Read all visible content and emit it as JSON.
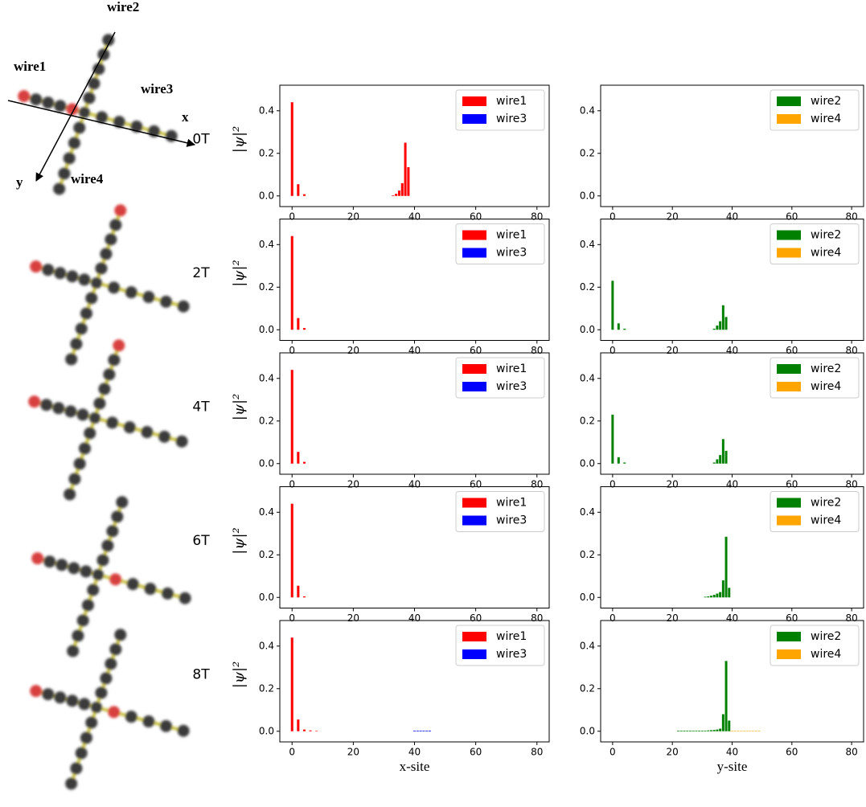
{
  "illustration": {
    "labels": [
      "wire2",
      "wire1",
      "wire3",
      "x",
      "y",
      "wire4"
    ]
  },
  "chart_data": [
    {
      "type": "bar",
      "label": "0T",
      "ylabel": "|ψ|²",
      "legend": "upper right",
      "xlim": [
        -4,
        84
      ],
      "ylim": [
        -0.05,
        0.52
      ],
      "xticks": [
        0,
        20,
        40,
        60,
        80
      ],
      "yticks": [
        {
          "value": 0,
          "label": "0.0"
        },
        {
          "value": 0.2,
          "label": "0.2"
        },
        {
          "value": 0.4,
          "label": "0.4"
        }
      ],
      "series": [
        {
          "name": "wire1",
          "color": "#ff0000",
          "x": [
            0,
            2,
            4,
            33,
            34,
            35,
            36,
            37,
            38
          ],
          "values": [
            0.44,
            0.055,
            0.008,
            0.003,
            0.01,
            0.025,
            0.06,
            0.25,
            0.135
          ]
        },
        {
          "name": "wire3",
          "color": "#0000ff",
          "x": [],
          "values": []
        }
      ]
    },
    {
      "type": "bar",
      "legend": "upper right",
      "xlim": [
        -4,
        84
      ],
      "ylim": [
        -0.05,
        0.52
      ],
      "xticks": [
        0,
        20,
        40,
        60,
        80
      ],
      "yticks": [
        {
          "value": 0,
          "label": "0.0"
        },
        {
          "value": 0.2,
          "label": "0.2"
        },
        {
          "value": 0.4,
          "label": "0.4"
        }
      ],
      "series": [
        {
          "name": "wire2",
          "color": "#008000",
          "x": [],
          "values": []
        },
        {
          "name": "wire4",
          "color": "#ffa500",
          "x": [],
          "values": []
        }
      ]
    },
    {
      "type": "bar",
      "label": "2T",
      "ylabel": "|ψ|²",
      "legend": "upper right",
      "xlim": [
        -4,
        84
      ],
      "ylim": [
        -0.05,
        0.52
      ],
      "xticks": [
        0,
        20,
        40,
        60,
        80
      ],
      "yticks": [
        {
          "value": 0,
          "label": "0.0"
        },
        {
          "value": 0.2,
          "label": "0.2"
        },
        {
          "value": 0.4,
          "label": "0.4"
        }
      ],
      "series": [
        {
          "name": "wire1",
          "color": "#ff0000",
          "x": [
            0,
            2,
            4
          ],
          "values": [
            0.44,
            0.055,
            0.008
          ]
        },
        {
          "name": "wire3",
          "color": "#0000ff",
          "x": [],
          "values": []
        }
      ]
    },
    {
      "type": "bar",
      "legend": "upper right",
      "xlim": [
        -4,
        84
      ],
      "ylim": [
        -0.05,
        0.52
      ],
      "xticks": [
        0,
        20,
        40,
        60,
        80
      ],
      "yticks": [
        {
          "value": 0,
          "label": "0.0"
        },
        {
          "value": 0.2,
          "label": "0.2"
        },
        {
          "value": 0.4,
          "label": "0.4"
        }
      ],
      "series": [
        {
          "name": "wire2",
          "color": "#008000",
          "x": [
            0,
            2,
            4,
            34,
            35,
            36,
            37,
            38
          ],
          "values": [
            0.23,
            0.03,
            0.005,
            0.005,
            0.02,
            0.04,
            0.115,
            0.06
          ]
        },
        {
          "name": "wire4",
          "color": "#ffa500",
          "x": [],
          "values": []
        }
      ]
    },
    {
      "type": "bar",
      "label": "4T",
      "ylabel": "|ψ|²",
      "legend": "upper right",
      "xlim": [
        -4,
        84
      ],
      "ylim": [
        -0.05,
        0.52
      ],
      "xticks": [
        0,
        20,
        40,
        60,
        80
      ],
      "yticks": [
        {
          "value": 0,
          "label": "0.0"
        },
        {
          "value": 0.2,
          "label": "0.2"
        },
        {
          "value": 0.4,
          "label": "0.4"
        }
      ],
      "series": [
        {
          "name": "wire1",
          "color": "#ff0000",
          "x": [
            0,
            2,
            4
          ],
          "values": [
            0.44,
            0.055,
            0.008
          ]
        },
        {
          "name": "wire3",
          "color": "#0000ff",
          "x": [],
          "values": []
        }
      ]
    },
    {
      "type": "bar",
      "legend": "upper right",
      "xlim": [
        -4,
        84
      ],
      "ylim": [
        -0.05,
        0.52
      ],
      "xticks": [
        0,
        20,
        40,
        60,
        80
      ],
      "yticks": [
        {
          "value": 0,
          "label": "0.0"
        },
        {
          "value": 0.2,
          "label": "0.2"
        },
        {
          "value": 0.4,
          "label": "0.4"
        }
      ],
      "series": [
        {
          "name": "wire2",
          "color": "#008000",
          "x": [
            0,
            2,
            4,
            34,
            35,
            36,
            37,
            38
          ],
          "values": [
            0.23,
            0.03,
            0.005,
            0.005,
            0.02,
            0.04,
            0.115,
            0.06
          ]
        },
        {
          "name": "wire4",
          "color": "#ffa500",
          "x": [],
          "values": []
        }
      ]
    },
    {
      "type": "bar",
      "label": "6T",
      "ylabel": "|ψ|²",
      "legend": "upper right",
      "xlim": [
        -4,
        84
      ],
      "ylim": [
        -0.05,
        0.52
      ],
      "xticks": [
        0,
        20,
        40,
        60,
        80
      ],
      "yticks": [
        {
          "value": 0,
          "label": "0.0"
        },
        {
          "value": 0.2,
          "label": "0.2"
        },
        {
          "value": 0.4,
          "label": "0.4"
        }
      ],
      "series": [
        {
          "name": "wire1",
          "color": "#ff0000",
          "x": [
            0,
            2,
            4
          ],
          "values": [
            0.44,
            0.055,
            0.005
          ]
        },
        {
          "name": "wire3",
          "color": "#0000ff",
          "x": [],
          "values": []
        }
      ]
    },
    {
      "type": "bar",
      "legend": "upper right",
      "xlim": [
        -4,
        84
      ],
      "ylim": [
        -0.05,
        0.52
      ],
      "xticks": [
        0,
        20,
        40,
        60,
        80
      ],
      "yticks": [
        {
          "value": 0,
          "label": "0.0"
        },
        {
          "value": 0.2,
          "label": "0.2"
        },
        {
          "value": 0.4,
          "label": "0.4"
        }
      ],
      "series": [
        {
          "name": "wire2",
          "color": "#008000",
          "x": [
            31,
            32,
            33,
            34,
            35,
            36,
            37,
            38,
            39
          ],
          "values": [
            0.003,
            0.005,
            0.008,
            0.012,
            0.018,
            0.025,
            0.08,
            0.285,
            0.045
          ]
        },
        {
          "name": "wire4",
          "color": "#ffa500",
          "x": [],
          "values": []
        }
      ]
    },
    {
      "type": "bar",
      "label": "8T",
      "ylabel": "|ψ|²",
      "xlabel": "x-site",
      "legend": "upper right",
      "xlim": [
        -4,
        84
      ],
      "ylim": [
        -0.05,
        0.52
      ],
      "xticks": [
        0,
        20,
        40,
        60,
        80
      ],
      "yticks": [
        {
          "value": 0,
          "label": "0.0"
        },
        {
          "value": 0.2,
          "label": "0.2"
        },
        {
          "value": 0.4,
          "label": "0.4"
        }
      ],
      "series": [
        {
          "name": "wire1",
          "color": "#ff0000",
          "x": [
            0,
            2,
            4,
            6,
            8
          ],
          "values": [
            0.44,
            0.055,
            0.008,
            0.004,
            0.002
          ]
        },
        {
          "name": "wire3",
          "color": "#0000ff",
          "x": [
            40,
            41,
            42,
            43,
            44,
            45
          ],
          "values": [
            0.003,
            0.003,
            0.003,
            0.003,
            0.003,
            0.003
          ]
        }
      ]
    },
    {
      "type": "bar",
      "xlabel": "y-site",
      "legend": "upper right",
      "xlim": [
        -4,
        84
      ],
      "ylim": [
        -0.05,
        0.52
      ],
      "xticks": [
        0,
        20,
        40,
        60,
        80
      ],
      "yticks": [
        {
          "value": 0,
          "label": "0.0"
        },
        {
          "value": 0.2,
          "label": "0.2"
        },
        {
          "value": 0.4,
          "label": "0.4"
        }
      ],
      "series": [
        {
          "name": "wire2",
          "color": "#008000",
          "x": [
            22,
            23,
            24,
            25,
            26,
            27,
            28,
            29,
            30,
            31,
            32,
            33,
            34,
            35,
            36,
            37,
            38,
            39
          ],
          "values": [
            0.003,
            0.003,
            0.003,
            0.003,
            0.003,
            0.003,
            0.003,
            0.003,
            0.003,
            0.003,
            0.004,
            0.005,
            0.006,
            0.008,
            0.012,
            0.08,
            0.33,
            0.05
          ]
        },
        {
          "name": "wire4",
          "color": "#ffa500",
          "x": [
            40,
            41,
            42,
            43,
            44,
            45,
            46,
            47,
            48,
            49
          ],
          "values": [
            0.002,
            0.002,
            0.002,
            0.002,
            0.002,
            0.002,
            0.002,
            0.002,
            0.002,
            0.002
          ]
        }
      ]
    }
  ]
}
